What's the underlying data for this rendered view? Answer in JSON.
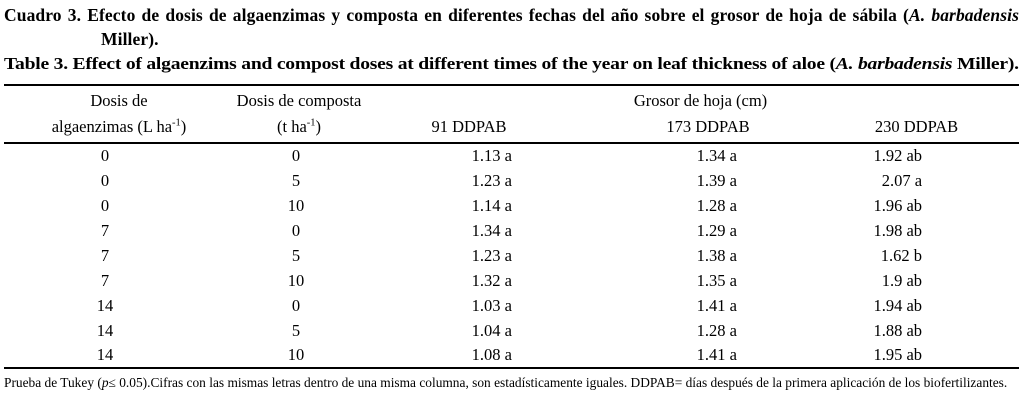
{
  "titles": {
    "spanish": {
      "prefix": "Cuadro 3. Efecto de dosis de algaenzimas y composta en diferentes fechas del año sobre el grosor de hoja de sábila (",
      "italic": "A. barbadensis",
      "suffix": " Miller)."
    },
    "english": {
      "prefix": "Table 3. Effect of algaenzims and compost doses at different times of the year on leaf thickness of aloe (",
      "italic": "A. barbadensis",
      "suffix": " Miller)."
    }
  },
  "table": {
    "col1_header": {
      "line1": "Dosis de",
      "line2_pre": "algaenzimas (L ha",
      "line2_sup": "-1",
      "line2_post": ")"
    },
    "col2_header": {
      "line1": "Dosis de composta",
      "line2_pre": "(t ha",
      "line2_sup": "-1",
      "line2_post": ")"
    },
    "span_header": "Grosor de hoja (cm)",
    "sub_headers": {
      "d91": "91 DDPAB",
      "d173": "173 DDPAB",
      "d230": "230 DDPAB"
    },
    "rows": [
      [
        "0",
        "0",
        "1.13 a",
        "1.34 a",
        "1.92 ab"
      ],
      [
        "0",
        "5",
        "1.23 a",
        "1.39 a",
        "2.07 a"
      ],
      [
        "0",
        "10",
        "1.14 a",
        "1.28 a",
        "1.96 ab"
      ],
      [
        "7",
        "0",
        "1.34 a",
        "1.29 a",
        "1.98 ab"
      ],
      [
        "7",
        "5",
        "1.23 a",
        "1.38 a",
        "1.62 b"
      ],
      [
        "7",
        "10",
        "1.32 a",
        "1.35 a",
        "1.9 ab"
      ],
      [
        "14",
        "0",
        "1.03 a",
        "1.41 a",
        "1.94 ab"
      ],
      [
        "14",
        "5",
        "1.04 a",
        "1.28 a",
        "1.88 ab"
      ],
      [
        "14",
        "10",
        "1.08 a",
        "1.41 a",
        "1.95 ab"
      ]
    ]
  },
  "footnote": {
    "pre": "Prueba de Tukey (",
    "italic": "p",
    "post": "≤ 0.05).Cifras con las mismas letras dentro de una misma columna, son estadísticamente iguales. DDPAB= días después de la primera aplicación de los biofertilizantes."
  }
}
